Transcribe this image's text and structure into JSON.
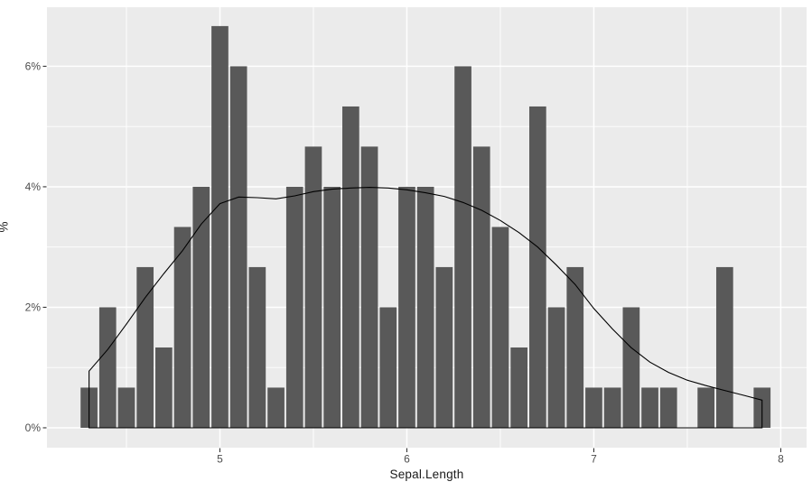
{
  "chart_data": {
    "type": "bar",
    "subtype": "histogram_with_density_overlay",
    "title": "",
    "xlabel": "Sepal.Length",
    "ylabel": "%",
    "legend": "none",
    "grid": "major+minor",
    "bin_width": 0.1,
    "bin_centers": [
      4.3,
      4.4,
      4.5,
      4.6,
      4.7,
      4.8,
      4.9,
      5.0,
      5.1,
      5.2,
      5.3,
      5.4,
      5.5,
      5.6,
      5.7,
      5.8,
      5.9,
      6.0,
      6.1,
      6.2,
      6.3,
      6.4,
      6.5,
      6.6,
      6.7,
      6.8,
      6.9,
      7.0,
      7.1,
      7.2,
      7.3,
      7.4,
      7.5,
      7.6,
      7.7,
      7.8,
      7.9
    ],
    "bin_percents": [
      0.667,
      2.0,
      0.667,
      2.667,
      1.333,
      3.333,
      4.0,
      6.667,
      6.0,
      2.667,
      0.667,
      4.0,
      4.667,
      4.0,
      5.333,
      4.667,
      2.0,
      4.0,
      4.0,
      2.667,
      6.0,
      4.667,
      3.333,
      1.333,
      5.333,
      2.0,
      2.667,
      0.667,
      0.667,
      2.0,
      0.667,
      0.667,
      0,
      0.667,
      2.667,
      0,
      0.667
    ],
    "density_curve": {
      "x": [
        4.3,
        4.4,
        4.5,
        4.6,
        4.7,
        4.8,
        4.9,
        5.0,
        5.1,
        5.2,
        5.3,
        5.4,
        5.5,
        5.6,
        5.7,
        5.8,
        5.9,
        6.0,
        6.1,
        6.2,
        6.3,
        6.4,
        6.5,
        6.6,
        6.7,
        6.8,
        6.9,
        7.0,
        7.1,
        7.2,
        7.3,
        7.4,
        7.5,
        7.6,
        7.7,
        7.8,
        7.9
      ],
      "pct": [
        0.94,
        1.3,
        1.72,
        2.16,
        2.56,
        2.94,
        3.38,
        3.72,
        3.83,
        3.82,
        3.8,
        3.85,
        3.92,
        3.96,
        3.98,
        3.99,
        3.98,
        3.95,
        3.9,
        3.84,
        3.74,
        3.61,
        3.44,
        3.24,
        3.0,
        2.7,
        2.38,
        1.98,
        1.64,
        1.33,
        1.09,
        0.92,
        0.79,
        0.7,
        0.62,
        0.54,
        0.46
      ],
      "closed_to_baseline": true
    },
    "x_ticks": {
      "major": [
        5,
        6,
        7,
        8
      ],
      "labels": [
        "5",
        "6",
        "7",
        "8"
      ],
      "minor": [
        4.5,
        5.5,
        6.5,
        7.5
      ]
    },
    "y_ticks": {
      "major": [
        0,
        2,
        4,
        6
      ],
      "labels": [
        "0%",
        "2%",
        "4%",
        "6%"
      ],
      "minor": [
        1,
        3,
        5
      ]
    },
    "xlim": [
      4.075,
      8.138
    ],
    "ylim": [
      -0.33,
      6.98
    ],
    "colors": {
      "figure_bg": "#ffffff",
      "panel_bg": "#ebebeb",
      "grid": "#ffffff",
      "bar": "#595959",
      "density_line": "#000000",
      "tick_text": "#4d4d4d",
      "tick_mark": "#333333",
      "axis_title": "#1a1a1a"
    }
  }
}
